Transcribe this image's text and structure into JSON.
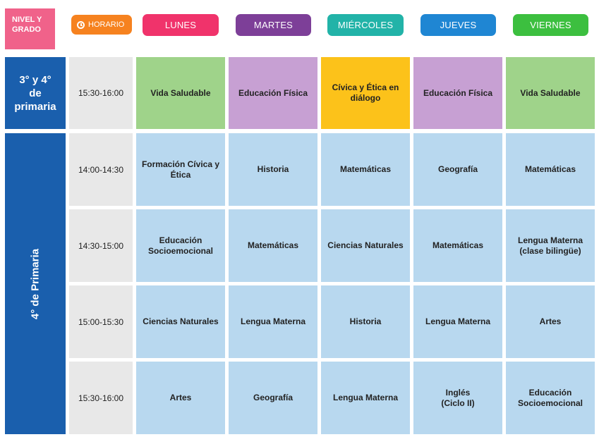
{
  "header": {
    "nivel_line1": "NIVEL Y",
    "nivel_line2": "GRADO",
    "horario_label": "HORARIO",
    "days": [
      "LUNES",
      "MARTES",
      "MIÉRCOLES",
      "JUEVES",
      "VIERNES"
    ],
    "day_colors": [
      "#f0336b",
      "#7d3f98",
      "#22b3a8",
      "#1f86d3",
      "#3cbf3f"
    ]
  },
  "groups": [
    {
      "label_lines": [
        "3° y 4°",
        "de",
        "primaria"
      ]
    },
    {
      "label": "4° de Primaria"
    }
  ],
  "rows": [
    {
      "time": "15:30-16:00",
      "subjects": [
        [
          "Vida Saludable"
        ],
        [
          "Educación Física"
        ],
        [
          "Cívica y Ética en",
          "diálogo"
        ],
        [
          "Educación Física"
        ],
        [
          "Vida Saludable"
        ]
      ]
    },
    {
      "time": "14:00-14:30",
      "subjects": [
        [
          "Formación Cívica y",
          "Ética"
        ],
        [
          "Historia"
        ],
        [
          "Matemáticas"
        ],
        [
          "Geografía"
        ],
        [
          "Matemáticas"
        ]
      ]
    },
    {
      "time": "14:30-15:00",
      "subjects": [
        [
          "Educación",
          "Socioemocional"
        ],
        [
          "Matemáticas"
        ],
        [
          "Ciencias Naturales"
        ],
        [
          "Matemáticas"
        ],
        [
          "Lengua Materna",
          "(clase bilingüe)"
        ]
      ]
    },
    {
      "time": "15:00-15:30",
      "subjects": [
        [
          "Ciencias Naturales"
        ],
        [
          "Lengua Materna"
        ],
        [
          "Historia"
        ],
        [
          "Lengua Materna"
        ],
        [
          "Artes"
        ]
      ]
    },
    {
      "time": "15:30-16:00",
      "subjects": [
        [
          "Artes"
        ],
        [
          "Geografía"
        ],
        [
          "Lengua Materna"
        ],
        [
          "Inglés",
          "(Ciclo II)"
        ],
        [
          "Educación",
          "Socioemocional"
        ]
      ]
    }
  ],
  "colors": {
    "first_row": [
      "#9fd38a",
      "#c7a0d3",
      "#fcc21a",
      "#c7a0d3",
      "#9fd38a"
    ],
    "body_cell": "#b8d8ef"
  }
}
